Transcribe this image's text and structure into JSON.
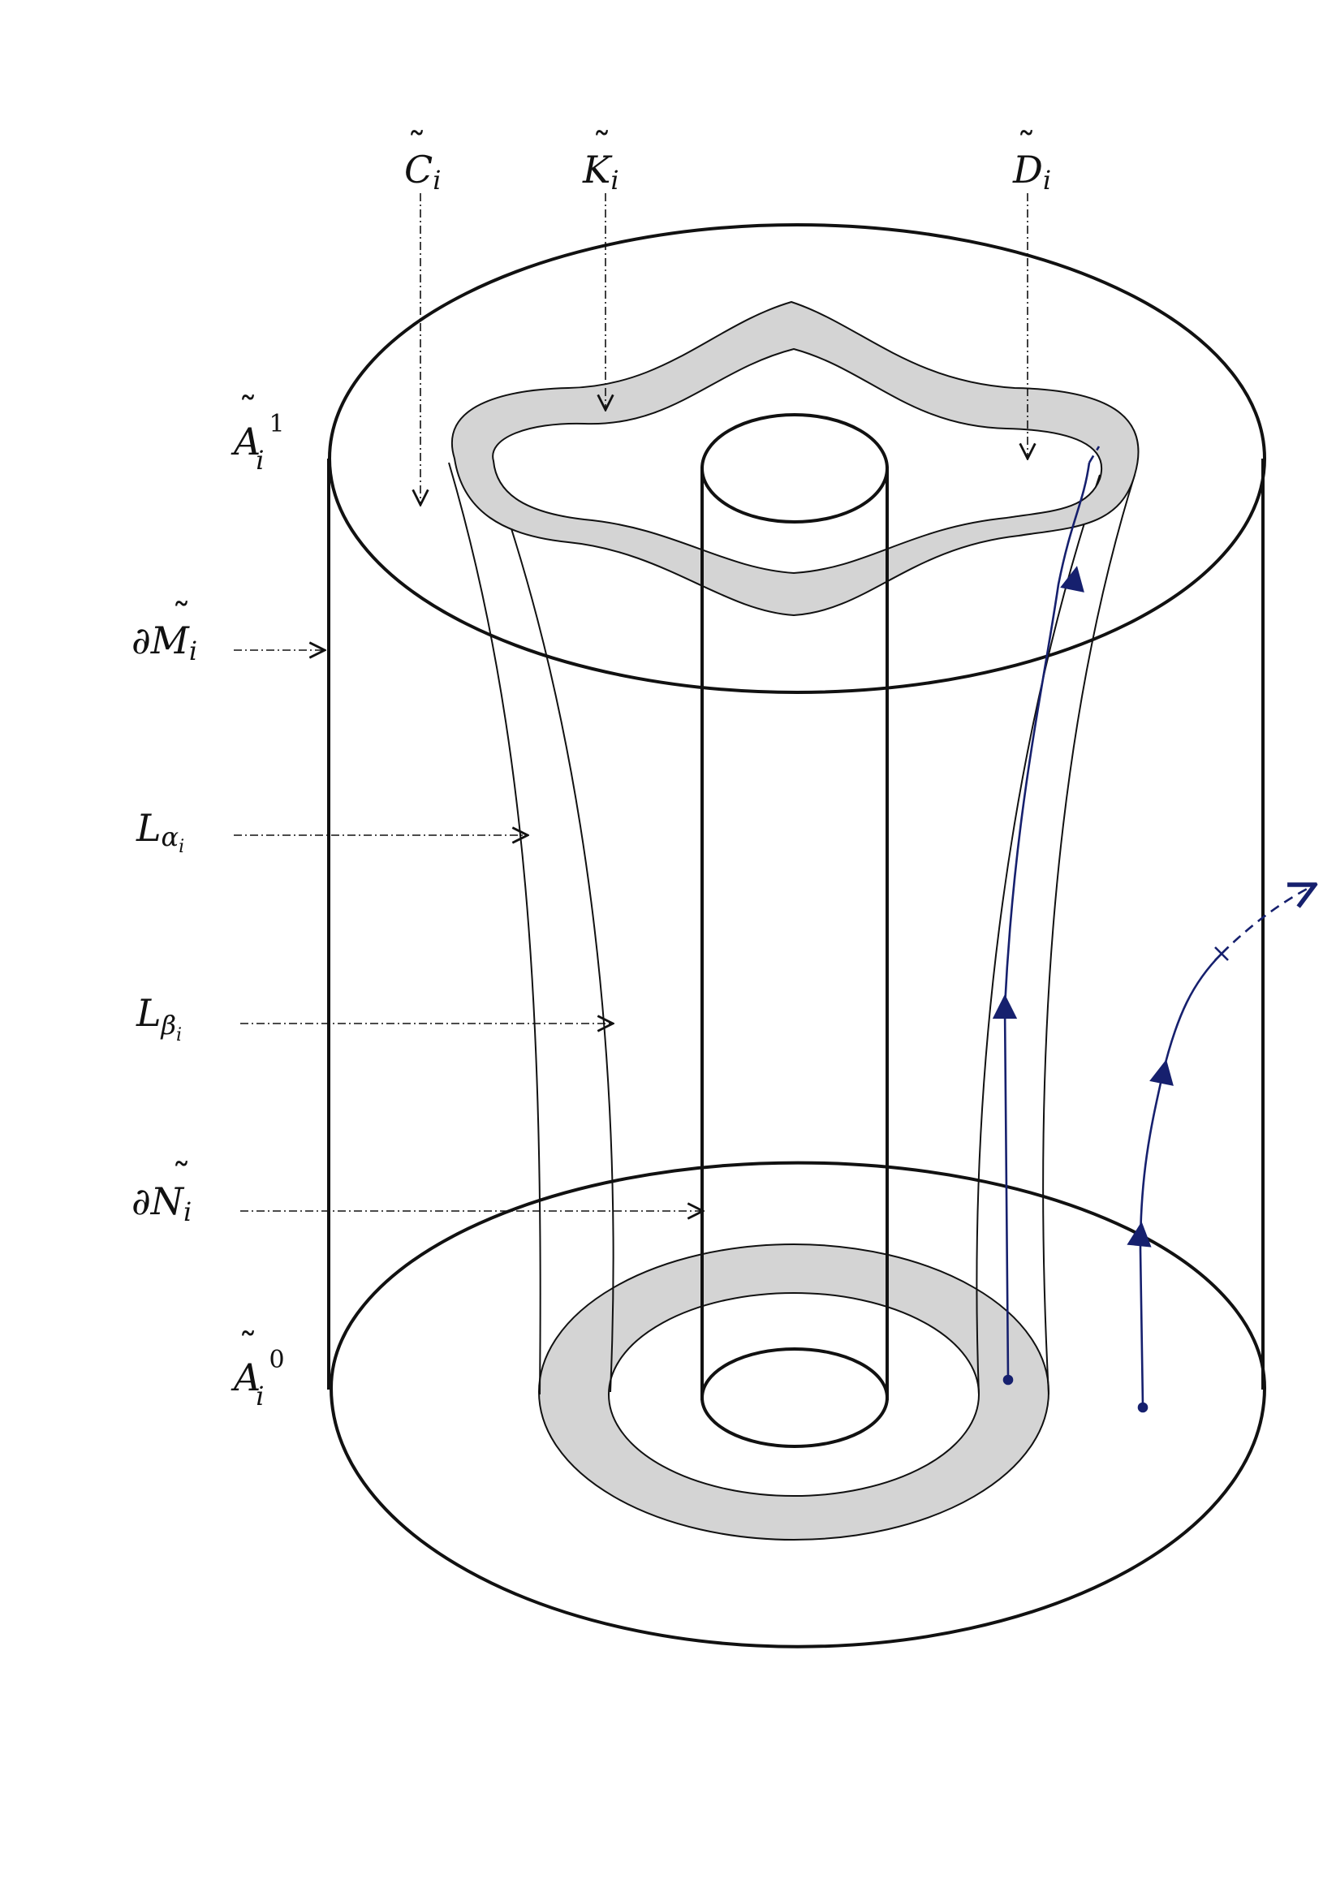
{
  "labels": {
    "c_tilde": {
      "base": "C",
      "sub": "i"
    },
    "k_tilde": {
      "base": "K",
      "sub": "i"
    },
    "d_tilde": {
      "base": "D",
      "sub": "i"
    },
    "a_top": {
      "base": "A",
      "sub": "i",
      "sup": "1"
    },
    "a_bottom": {
      "base": "A",
      "sub": "i",
      "sup": "0"
    },
    "dm": {
      "prefix": "∂",
      "base": "M",
      "sub": "i"
    },
    "l_alpha": {
      "base": "L",
      "sub": "α",
      "subsub": "i"
    },
    "l_beta": {
      "base": "L",
      "sub": "β",
      "subsub": "i"
    },
    "dn": {
      "prefix": "∂",
      "base": "N",
      "sub": "i"
    }
  },
  "colors": {
    "ink": "#111111",
    "shade": "#cfcfcf",
    "flow": "#16206e"
  }
}
